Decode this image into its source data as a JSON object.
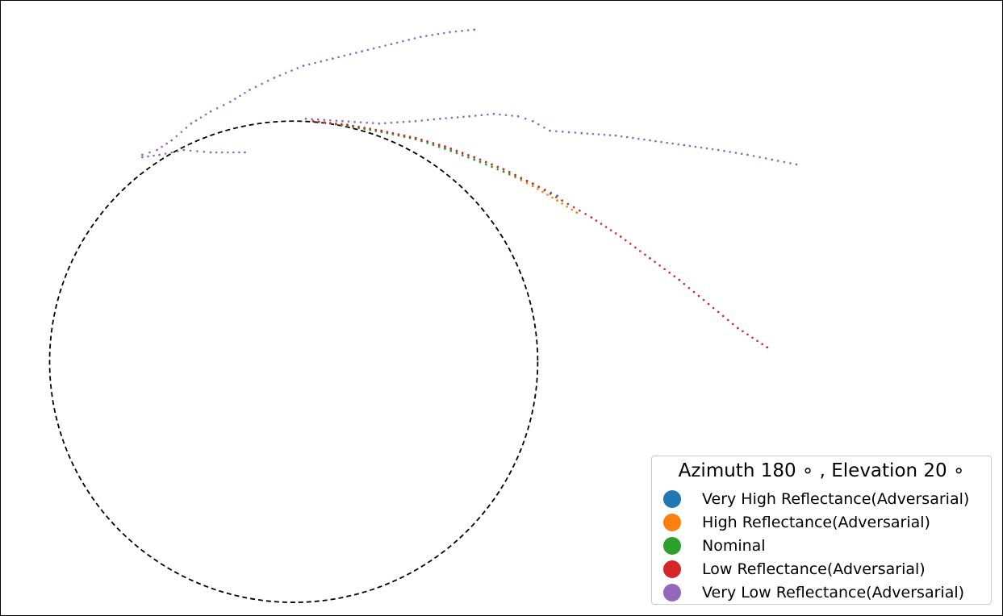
{
  "chart_data": {
    "type": "scatter",
    "title": "",
    "xlabel": "",
    "ylabel": "",
    "axes_visible": false,
    "grid": false,
    "xlim": [
      -1.2,
      2.9
    ],
    "ylim": [
      -1.05,
      1.5
    ],
    "reference_circle": {
      "center": [
        0,
        0
      ],
      "radius": 1.0,
      "style": "dashed",
      "color": "#000000"
    },
    "legend": {
      "title": "Azimuth 180$^\\circ$, Elevation 20$^\\circ$",
      "title_display": "Azimuth 180 ∘ , Elevation 20 ∘",
      "placement": "lower-right"
    },
    "series": [
      {
        "name": "Very High Reflectance(Adversarial)",
        "color": "#1f77b4",
        "x": [
          0.08,
          0.22,
          0.36,
          0.5,
          0.62,
          0.74,
          0.86,
          0.98,
          1.08
        ],
        "y": [
          1.0,
          0.98,
          0.96,
          0.93,
          0.89,
          0.85,
          0.8,
          0.74,
          0.69
        ]
      },
      {
        "name": "High Reflectance(Adversarial)",
        "color": "#ff7f0e",
        "x": [
          0.08,
          0.22,
          0.36,
          0.5,
          0.62,
          0.74,
          0.86,
          0.98,
          1.08,
          1.16
        ],
        "y": [
          1.0,
          0.98,
          0.955,
          0.925,
          0.885,
          0.84,
          0.79,
          0.73,
          0.67,
          0.62
        ]
      },
      {
        "name": "Nominal",
        "color": "#2ca02c",
        "x": [
          0.08,
          0.22,
          0.36,
          0.5,
          0.62,
          0.74,
          0.86,
          0.98
        ],
        "y": [
          1.0,
          0.98,
          0.955,
          0.925,
          0.885,
          0.84,
          0.79,
          0.74
        ]
      },
      {
        "name": "Low Reflectance(Adversarial)",
        "color": "#d62728",
        "x": [
          0.08,
          0.22,
          0.36,
          0.5,
          0.62,
          0.74,
          0.86,
          0.98,
          1.1,
          1.22,
          1.34,
          1.46,
          1.58,
          1.7,
          1.82,
          1.94
        ],
        "y": [
          1.0,
          0.985,
          0.96,
          0.93,
          0.895,
          0.85,
          0.8,
          0.74,
          0.67,
          0.6,
          0.52,
          0.43,
          0.34,
          0.24,
          0.14,
          0.06
        ]
      },
      {
        "name": "Very Low Reflectance(Adversarial)",
        "color": "#9467bd",
        "x": [
          -0.62,
          -0.56,
          -0.5,
          -0.42,
          -0.34,
          -0.26,
          -0.18,
          -0.08,
          0.04,
          0.16,
          0.28,
          0.4,
          0.52,
          0.64,
          0.74,
          -0.2,
          -0.34,
          -0.45,
          -0.55,
          -0.62,
          0.05,
          0.2,
          0.35,
          0.5,
          0.6,
          0.72,
          0.82,
          0.92,
          0.98,
          1.05,
          1.18,
          1.32,
          1.46,
          1.6,
          1.74,
          1.86,
          1.96,
          2.06
        ],
        "y": [
          0.86,
          0.88,
          0.92,
          0.99,
          1.04,
          1.08,
          1.13,
          1.18,
          1.23,
          1.26,
          1.29,
          1.32,
          1.35,
          1.37,
          1.38,
          0.87,
          0.87,
          0.88,
          0.86,
          0.85,
          1.01,
          1.0,
          0.99,
          1.0,
          1.01,
          1.02,
          1.03,
          1.02,
          1.0,
          0.96,
          0.95,
          0.94,
          0.92,
          0.9,
          0.88,
          0.86,
          0.84,
          0.82
        ]
      }
    ]
  }
}
